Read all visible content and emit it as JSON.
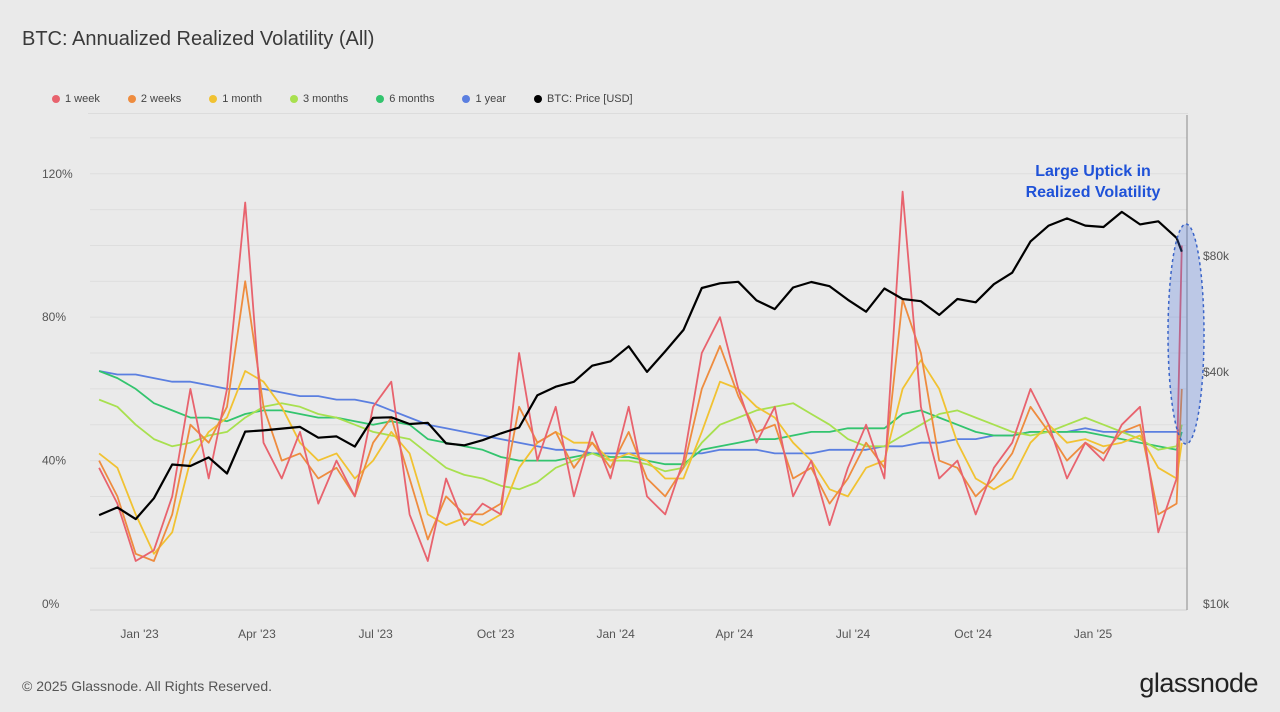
{
  "title": "BTC: Annualized Realized Volatility (All)",
  "legend": [
    {
      "label": "1 week",
      "color": "#e8636e"
    },
    {
      "label": "2 weeks",
      "color": "#ee8c3f"
    },
    {
      "label": "1 month",
      "color": "#f1c232"
    },
    {
      "label": "3 months",
      "color": "#a8e04f"
    },
    {
      "label": "6 months",
      "color": "#33c46e"
    },
    {
      "label": "1 year",
      "color": "#5b7fe0"
    },
    {
      "label": "BTC: Price [USD]",
      "color": "#000000"
    }
  ],
  "annotation": {
    "line1": "Large Uptick in",
    "line2": "Realized Volatility",
    "color": "#1f52d8"
  },
  "footer": "© 2025 Glassnode. All Rights Reserved.",
  "logo": "glassnode",
  "chart_data": {
    "type": "line",
    "title": "BTC: Annualized Realized Volatility (All)",
    "x_range": [
      "2022-11-24",
      "2025-03-14"
    ],
    "x_ticks": [
      "Jan '23",
      "Apr '23",
      "Jul '23",
      "Oct '23",
      "Jan '24",
      "Apr '24",
      "Jul '24",
      "Oct '24",
      "Jan '25"
    ],
    "x_tick_dates": [
      "2023-01-01",
      "2023-04-01",
      "2023-07-01",
      "2023-10-01",
      "2024-01-01",
      "2024-04-01",
      "2024-07-01",
      "2024-10-01",
      "2025-01-01"
    ],
    "y_left": {
      "ticks": [
        "0%",
        "40%",
        "80%",
        "120%"
      ],
      "tick_values": [
        0,
        40,
        80,
        120
      ],
      "range": [
        0,
        135
      ],
      "unit": "%"
    },
    "y_right": {
      "scale": "log",
      "ticks": [
        "$10k",
        "$40k",
        "$80k"
      ],
      "tick_values": [
        10000,
        40000,
        80000
      ],
      "range": [
        10000,
        180000
      ]
    },
    "grid": true,
    "legend_placement": "top-left",
    "x": [
      "2022-12-01",
      "2022-12-15",
      "2022-12-29",
      "2023-01-12",
      "2023-01-26",
      "2023-02-09",
      "2023-02-23",
      "2023-03-09",
      "2023-03-23",
      "2023-04-06",
      "2023-04-20",
      "2023-05-04",
      "2023-05-18",
      "2023-06-01",
      "2023-06-15",
      "2023-06-29",
      "2023-07-13",
      "2023-07-27",
      "2023-08-10",
      "2023-08-24",
      "2023-09-07",
      "2023-09-21",
      "2023-10-05",
      "2023-10-19",
      "2023-11-02",
      "2023-11-16",
      "2023-11-30",
      "2023-12-14",
      "2023-12-28",
      "2024-01-11",
      "2024-01-25",
      "2024-02-08",
      "2024-02-22",
      "2024-03-07",
      "2024-03-21",
      "2024-04-04",
      "2024-04-18",
      "2024-05-02",
      "2024-05-16",
      "2024-05-30",
      "2024-06-13",
      "2024-06-27",
      "2024-07-11",
      "2024-07-25",
      "2024-08-08",
      "2024-08-22",
      "2024-09-05",
      "2024-09-19",
      "2024-10-03",
      "2024-10-17",
      "2024-10-31",
      "2024-11-14",
      "2024-11-28",
      "2024-12-12",
      "2024-12-26",
      "2025-01-09",
      "2025-01-23",
      "2025-02-06",
      "2025-02-20",
      "2025-03-06",
      "2025-03-10"
    ],
    "series": [
      {
        "name": "1 week",
        "axis": "left",
        "color": "#e8636e",
        "values": [
          38,
          28,
          12,
          15,
          30,
          60,
          35,
          60,
          112,
          45,
          35,
          48,
          28,
          40,
          30,
          55,
          62,
          25,
          12,
          35,
          22,
          28,
          25,
          70,
          40,
          55,
          30,
          48,
          35,
          55,
          30,
          25,
          40,
          70,
          80,
          60,
          45,
          55,
          30,
          40,
          22,
          38,
          50,
          35,
          115,
          55,
          35,
          40,
          25,
          38,
          45,
          60,
          50,
          35,
          45,
          40,
          50,
          55,
          20,
          35,
          100
        ]
      },
      {
        "name": "2 weeks",
        "axis": "left",
        "color": "#ee8c3f",
        "values": [
          40,
          30,
          14,
          12,
          25,
          50,
          45,
          55,
          90,
          55,
          40,
          42,
          35,
          38,
          30,
          45,
          52,
          35,
          18,
          30,
          25,
          25,
          28,
          55,
          45,
          48,
          38,
          45,
          38,
          48,
          35,
          30,
          38,
          60,
          72,
          58,
          48,
          50,
          35,
          38,
          28,
          35,
          45,
          38,
          85,
          70,
          40,
          38,
          30,
          35,
          42,
          55,
          48,
          40,
          45,
          42,
          48,
          50,
          25,
          28,
          60
        ]
      },
      {
        "name": "1 month",
        "axis": "left",
        "color": "#f1c232",
        "values": [
          42,
          38,
          25,
          14,
          20,
          40,
          48,
          52,
          65,
          62,
          55,
          45,
          40,
          42,
          35,
          40,
          48,
          42,
          25,
          22,
          24,
          22,
          25,
          38,
          45,
          48,
          45,
          45,
          40,
          42,
          40,
          35,
          35,
          48,
          62,
          60,
          55,
          52,
          45,
          40,
          32,
          30,
          38,
          40,
          60,
          68,
          60,
          45,
          35,
          32,
          35,
          45,
          50,
          45,
          46,
          44,
          45,
          47,
          38,
          35,
          45
        ]
      },
      {
        "name": "3 months",
        "axis": "left",
        "color": "#a8e04f",
        "values": [
          57,
          55,
          50,
          46,
          44,
          45,
          47,
          48,
          52,
          55,
          56,
          55,
          53,
          52,
          50,
          48,
          47,
          46,
          42,
          38,
          36,
          35,
          33,
          32,
          34,
          38,
          40,
          42,
          40,
          40,
          39,
          37,
          38,
          45,
          50,
          52,
          54,
          55,
          56,
          53,
          50,
          46,
          44,
          44,
          47,
          50,
          53,
          54,
          52,
          50,
          48,
          47,
          48,
          50,
          52,
          50,
          48,
          46,
          43,
          44,
          50
        ]
      },
      {
        "name": "6 months",
        "axis": "left",
        "color": "#33c46e",
        "values": [
          65,
          63,
          60,
          56,
          54,
          52,
          52,
          51,
          53,
          54,
          54,
          53,
          52,
          52,
          51,
          50,
          51,
          50,
          46,
          45,
          44,
          43,
          41,
          40,
          40,
          40,
          41,
          42,
          41,
          41,
          40,
          39,
          39,
          43,
          44,
          45,
          46,
          46,
          47,
          48,
          48,
          49,
          49,
          49,
          53,
          54,
          52,
          50,
          48,
          47,
          47,
          48,
          48,
          48,
          48,
          47,
          46,
          45,
          44,
          43,
          48
        ]
      },
      {
        "name": "1 year",
        "axis": "left",
        "color": "#5b7fe0",
        "values": [
          65,
          64,
          64,
          63,
          62,
          62,
          61,
          60,
          60,
          60,
          59,
          58,
          58,
          57,
          57,
          56,
          54,
          52,
          50,
          49,
          48,
          47,
          46,
          45,
          44,
          43,
          43,
          42,
          42,
          42,
          42,
          42,
          42,
          42,
          43,
          43,
          43,
          42,
          42,
          42,
          43,
          43,
          43,
          44,
          44,
          45,
          45,
          46,
          46,
          47,
          47,
          48,
          48,
          48,
          49,
          48,
          48,
          48,
          48,
          48,
          49
        ]
      },
      {
        "name": "BTC: Price [USD]",
        "axis": "right",
        "color": "#000000",
        "values": [
          17000,
          17800,
          16600,
          18800,
          23000,
          22800,
          24000,
          21800,
          28000,
          28200,
          28500,
          28800,
          27000,
          27200,
          25600,
          30400,
          30500,
          29300,
          29500,
          26100,
          25800,
          26600,
          27700,
          28700,
          34800,
          36600,
          37700,
          41500,
          42600,
          46600,
          40000,
          45200,
          51400,
          66000,
          67900,
          68500,
          61300,
          58200,
          66200,
          68400,
          66700,
          61500,
          57300,
          65800,
          61800,
          61000,
          56200,
          61800,
          60600,
          67500,
          72300,
          87200,
          95800,
          100000,
          95800,
          95000,
          104000,
          96500,
          98300,
          89000,
          82000
        ]
      }
    ]
  }
}
